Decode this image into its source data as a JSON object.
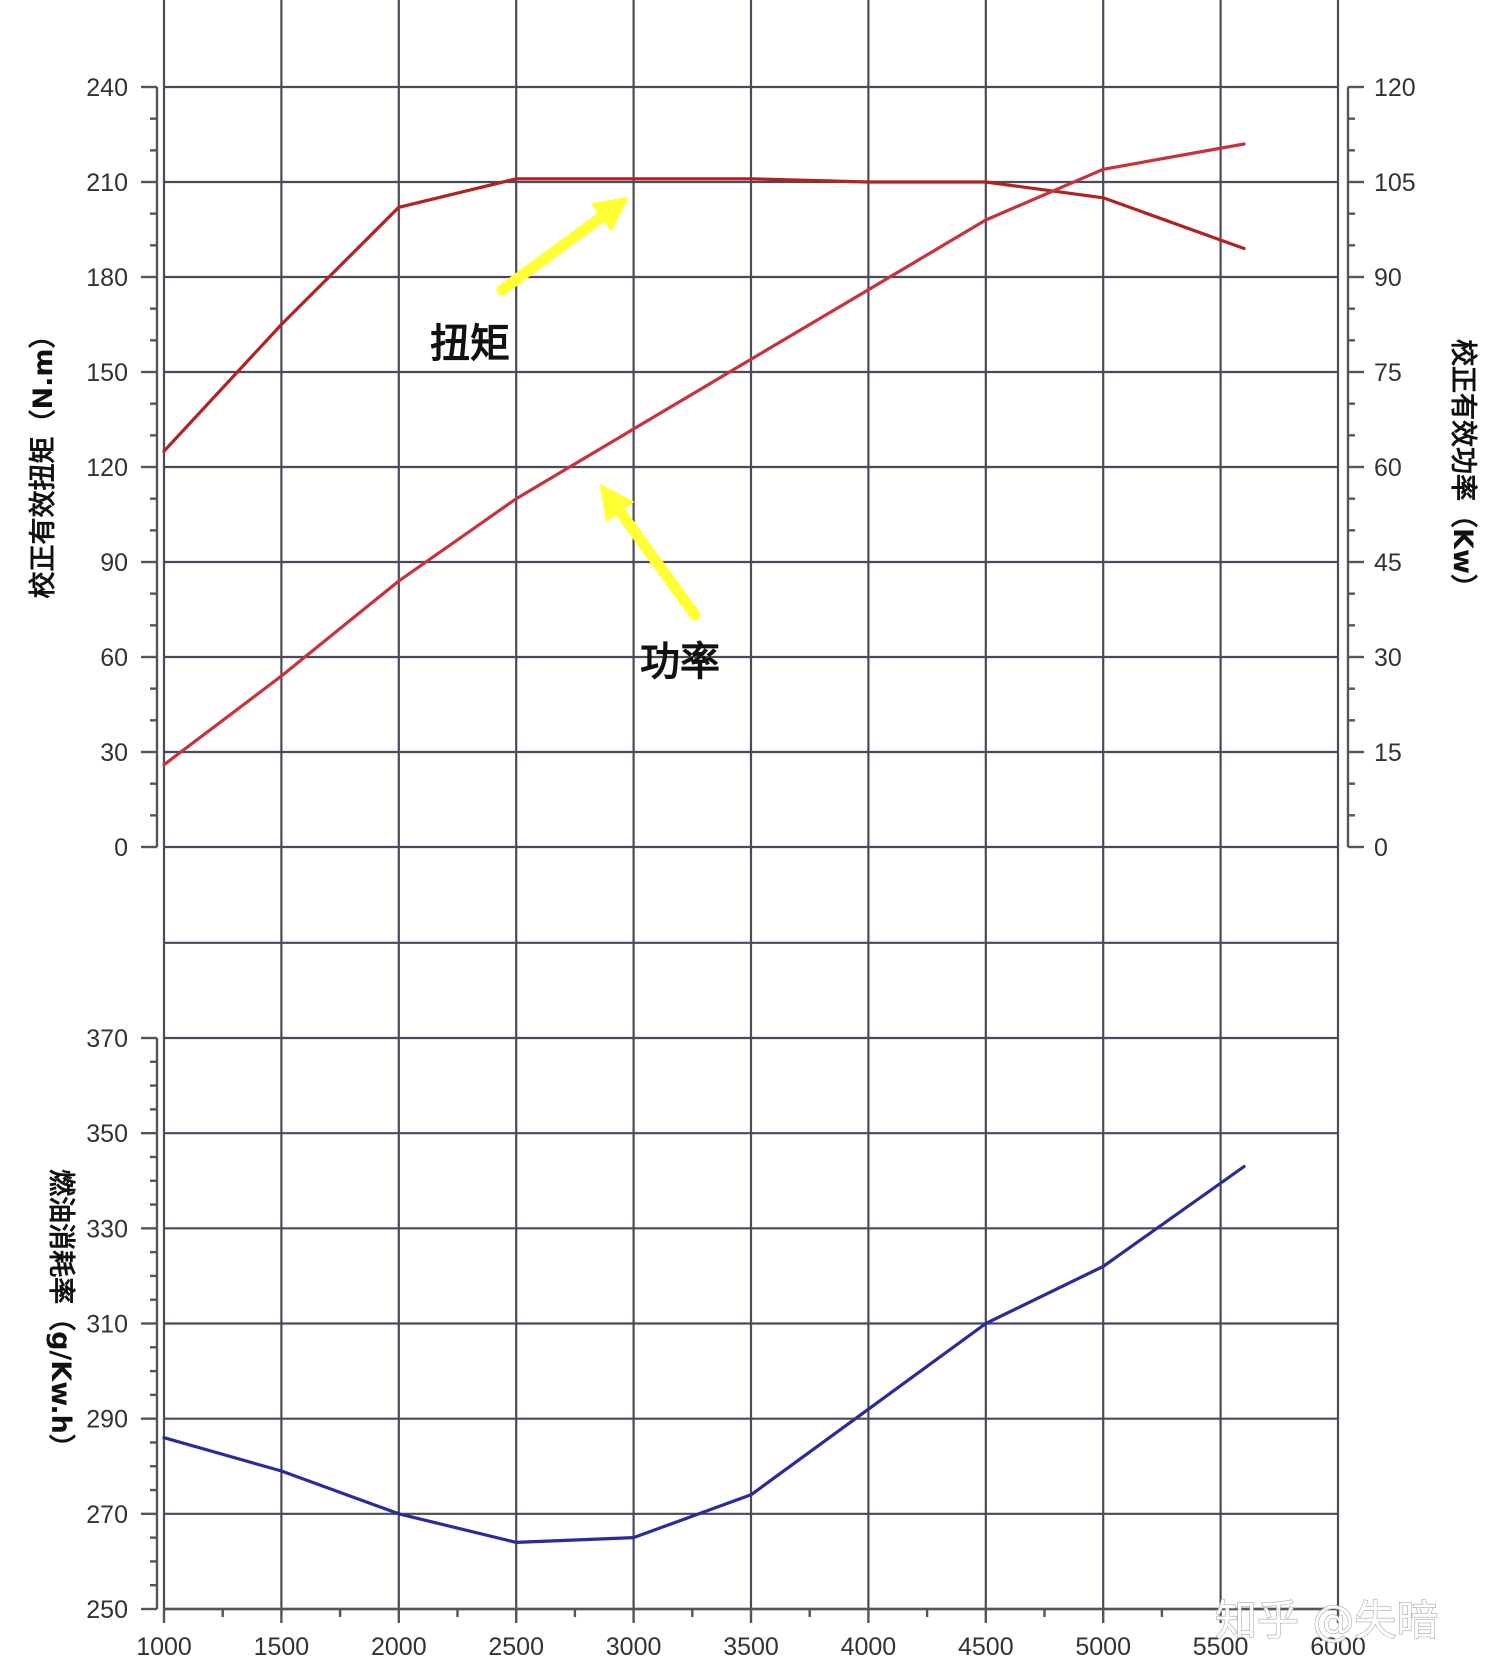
{
  "chart_data": [
    {
      "type": "line",
      "ylabel_left": "校正有效扭矩（N.m）",
      "ylabel_right": "校正有效功率（Kw）",
      "x_ticks": [
        1000,
        1500,
        2000,
        2500,
        3000,
        3500,
        4000,
        4500,
        5000,
        5500,
        6000
      ],
      "xlim": [
        1000,
        6000
      ],
      "ylim_left": [
        0,
        240
      ],
      "ylim_right": [
        0,
        120
      ],
      "y_ticks_left": [
        0,
        30,
        60,
        90,
        120,
        150,
        180,
        210,
        240
      ],
      "y_ticks_right": [
        0,
        15,
        30,
        45,
        60,
        75,
        90,
        105,
        120
      ],
      "grid": true,
      "series": [
        {
          "name": "扭矩",
          "axis": "left",
          "color": "#b22222",
          "x": [
            1000,
            1500,
            2000,
            2500,
            3000,
            3500,
            4000,
            4500,
            5000,
            5600
          ],
          "y": [
            125,
            165,
            202,
            211,
            211,
            211,
            210,
            210,
            205,
            189
          ]
        },
        {
          "name": "功率",
          "axis": "right",
          "color": "#c8323c",
          "x": [
            1000,
            1500,
            2000,
            2500,
            3000,
            3500,
            4000,
            4500,
            5000,
            5600
          ],
          "y": [
            13,
            27,
            42,
            55,
            66,
            77,
            88,
            99,
            107,
            111
          ]
        }
      ],
      "annotations": [
        {
          "text": "扭矩",
          "series": "扭矩",
          "arrow_color": "#ffff33"
        },
        {
          "text": "功率",
          "series": "功率",
          "arrow_color": "#ffff33"
        }
      ]
    },
    {
      "type": "line",
      "ylabel": "燃油消耗率（g/Kw.h）",
      "ylim": [
        250,
        370
      ],
      "y_ticks": [
        250,
        270,
        290,
        310,
        330,
        350,
        370
      ],
      "grid": true,
      "series": [
        {
          "name": "燃油消耗率",
          "color": "#2b2b9a",
          "x": [
            1000,
            1500,
            2000,
            2500,
            3000,
            3500,
            4000,
            4500,
            5000,
            5600
          ],
          "y": [
            286,
            279,
            270,
            264,
            265,
            274,
            292,
            310,
            322,
            343
          ]
        }
      ]
    }
  ],
  "watermark": "知乎 @失暗"
}
